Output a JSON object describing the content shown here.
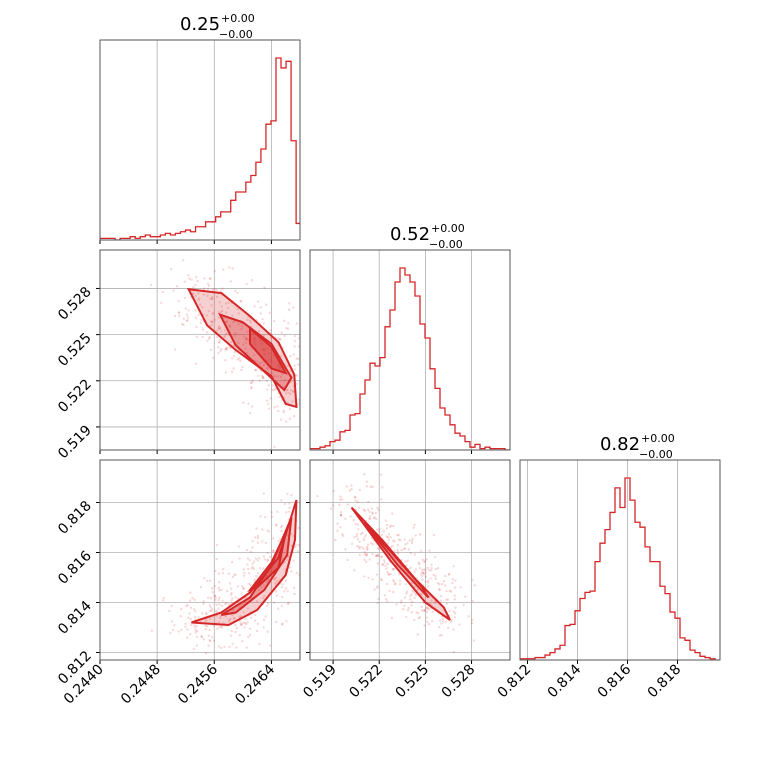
{
  "colors": {
    "series": "#d62728",
    "grid": "#b0b0b0",
    "axes": "#555555",
    "background": "#ffffff"
  },
  "chart_data": {
    "type": "corner",
    "grid": true,
    "parameters": [
      {
        "title_value": "0.25",
        "title_plus": "+0.00",
        "title_minus": "−0.00",
        "range": [
          0.244,
          0.2468
        ],
        "ticks": [
          0.244,
          0.2448,
          0.2456,
          0.2464
        ],
        "tick_labels": [
          "0.2440",
          "0.2448",
          "0.2456",
          "0.2464"
        ],
        "histogram": {
          "bin_start": 0.244,
          "bin_width": 7.04e-05,
          "counts": [
            1,
            1,
            1,
            0,
            1,
            1,
            2,
            1,
            2,
            3,
            2,
            2,
            3,
            4,
            3,
            4,
            5,
            6,
            5,
            8,
            8,
            11,
            11,
            14,
            17,
            17,
            24,
            29,
            29,
            35,
            39,
            47,
            55,
            70,
            72,
            110,
            104,
            108,
            60,
            10
          ]
        }
      },
      {
        "title_value": "0.52",
        "title_plus": "+0.00",
        "title_minus": "−0.00",
        "range": [
          0.5175,
          0.5305
        ],
        "ticks": [
          0.519,
          0.522,
          0.525,
          0.528
        ],
        "tick_labels": [
          "0.519",
          "0.522",
          "0.525",
          "0.528"
        ],
        "histogram": {
          "bin_start": 0.5175,
          "bin_width": 0.000325,
          "counts": [
            1,
            1,
            2,
            3,
            6,
            7,
            13,
            14,
            25,
            26,
            40,
            50,
            62,
            60,
            66,
            88,
            100,
            120,
            130,
            125,
            120,
            110,
            90,
            80,
            58,
            44,
            30,
            25,
            18,
            12,
            10,
            6,
            2,
            4,
            1,
            2,
            1,
            1,
            1,
            0
          ]
        }
      },
      {
        "title_value": "0.82",
        "title_plus": "+0.00",
        "title_minus": "−0.00",
        "range": [
          0.8117,
          0.8197
        ],
        "ticks": [
          0.812,
          0.814,
          0.816,
          0.818
        ],
        "tick_labels": [
          "0.812",
          "0.814",
          "0.816",
          "0.818"
        ],
        "histogram": {
          "bin_start": 0.8117,
          "bin_width": 0.0002,
          "counts": [
            1,
            1,
            1,
            2,
            2,
            4,
            6,
            9,
            12,
            28,
            29,
            40,
            50,
            55,
            56,
            80,
            95,
            106,
            120,
            140,
            124,
            148,
            130,
            112,
            108,
            92,
            80,
            80,
            60,
            54,
            39,
            34,
            18,
            16,
            8,
            6,
            3,
            2,
            1,
            0
          ]
        }
      }
    ],
    "pairs": [
      {
        "x_param": 0,
        "y_param": 1,
        "contours": [
          [
            [
              0.24524,
              0.52795
            ],
            [
              0.2457,
              0.5277
            ],
            [
              0.2461,
              0.5262
            ],
            [
              0.2465,
              0.5245
            ],
            [
              0.24672,
              0.5224
            ],
            [
              0.24675,
              0.5203
            ],
            [
              0.2466,
              0.5205
            ],
            [
              0.2464,
              0.5223
            ],
            [
              0.2459,
              0.524
            ],
            [
              0.2455,
              0.5256
            ],
            [
              0.24524,
              0.52795
            ]
          ],
          [
            [
              0.24568,
              0.5263
            ],
            [
              0.246,
              0.5258
            ],
            [
              0.2464,
              0.5244
            ],
            [
              0.24668,
              0.5222
            ],
            [
              0.24658,
              0.5214
            ],
            [
              0.2463,
              0.5226
            ],
            [
              0.2459,
              0.5243
            ],
            [
              0.24568,
              0.5263
            ]
          ],
          [
            [
              0.2461,
              0.5254
            ],
            [
              0.2464,
              0.5242
            ],
            [
              0.2466,
              0.5225
            ],
            [
              0.2464,
              0.5228
            ],
            [
              0.2461,
              0.5244
            ],
            [
              0.2461,
              0.5254
            ]
          ]
        ]
      },
      {
        "x_param": 0,
        "y_param": 2,
        "contours": [
          [
            [
              0.24528,
              0.8132
            ],
            [
              0.2457,
              0.8136
            ],
            [
              0.2461,
              0.8144
            ],
            [
              0.2465,
              0.8158
            ],
            [
              0.24675,
              0.8181
            ],
            [
              0.24673,
              0.8165
            ],
            [
              0.2466,
              0.8151
            ],
            [
              0.2462,
              0.8137
            ],
            [
              0.2458,
              0.8131
            ],
            [
              0.24528,
              0.8132
            ]
          ],
          [
            [
              0.2457,
              0.8135
            ],
            [
              0.2461,
              0.8142
            ],
            [
              0.2464,
              0.8155
            ],
            [
              0.24668,
              0.8174
            ],
            [
              0.24662,
              0.8159
            ],
            [
              0.2463,
              0.8145
            ],
            [
              0.2459,
              0.8136
            ],
            [
              0.2457,
              0.8135
            ]
          ],
          [
            [
              0.2461,
              0.8145
            ],
            [
              0.2464,
              0.8156
            ],
            [
              0.2466,
              0.8168
            ],
            [
              0.2465,
              0.8154
            ],
            [
              0.2462,
              0.8146
            ],
            [
              0.2461,
              0.8145
            ]
          ]
        ]
      },
      {
        "x_param": 1,
        "y_param": 2,
        "contours": [
          [
            [
              0.5202,
              0.8178
            ],
            [
              0.5227,
              0.8157
            ],
            [
              0.525,
              0.814
            ],
            [
              0.5266,
              0.8133
            ],
            [
              0.5262,
              0.8138
            ],
            [
              0.5244,
              0.8149
            ],
            [
              0.5222,
              0.8165
            ],
            [
              0.5202,
              0.8178
            ]
          ],
          [
            [
              0.521,
              0.8172
            ],
            [
              0.5232,
              0.8155
            ],
            [
              0.5252,
              0.8142
            ],
            [
              0.5248,
              0.8146
            ],
            [
              0.5228,
              0.816
            ],
            [
              0.521,
              0.8172
            ]
          ]
        ]
      }
    ]
  }
}
